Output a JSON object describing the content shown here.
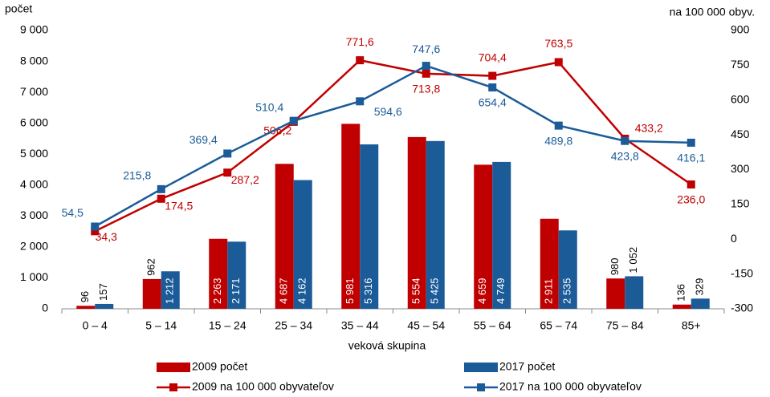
{
  "chart_data": {
    "type": "bar",
    "y_label": "počet",
    "y2_label": "na 100 000 obyv.",
    "x_label": "veková skupina",
    "categories": [
      "0 – 4",
      "5 – 14",
      "15 – 24",
      "25 – 34",
      "35 – 44",
      "45 – 54",
      "55 – 64",
      "65 – 74",
      "75 – 84",
      "85+"
    ],
    "series": [
      {
        "name": "2009 počet",
        "color": "#c00000",
        "type": "bar",
        "values": [
          96,
          962,
          2263,
          4687,
          5981,
          5554,
          4659,
          2911,
          980,
          136
        ],
        "value_labels": [
          "96",
          "962",
          "2 263",
          "4 687",
          "5 981",
          "5 554",
          "4 659",
          "2 911",
          "980",
          "136"
        ]
      },
      {
        "name": "2017 počet",
        "color": "#1a5b98",
        "type": "bar",
        "values": [
          157,
          1212,
          2171,
          4162,
          5316,
          5425,
          4749,
          2535,
          1052,
          329
        ],
        "value_labels": [
          "157",
          "1 212",
          "2 171",
          "4 162",
          "5 316",
          "5 425",
          "4 749",
          "2 535",
          "1 052",
          "329"
        ]
      },
      {
        "name": "2009 na 100 000 obyvateľov",
        "color": "#c00000",
        "type": "line",
        "axis": "y2",
        "values": [
          34.3,
          174.5,
          287.2,
          506.2,
          771.6,
          713.8,
          704.4,
          763.5,
          433.2,
          236.0
        ],
        "value_labels": [
          "34,3",
          "174,5",
          "287,2",
          "506,2",
          "771,6",
          "713,8",
          "704,4",
          "763,5",
          "433,2",
          "236,0"
        ]
      },
      {
        "name": "2017 na 100 000 obyvateľov",
        "color": "#1a5b98",
        "type": "line",
        "axis": "y2",
        "values": [
          54.5,
          215.8,
          369.4,
          510.4,
          594.6,
          747.6,
          654.4,
          489.8,
          423.8,
          416.1
        ],
        "value_labels": [
          "54,5",
          "215,8",
          "369,4",
          "510,4",
          "594,6",
          "747,6",
          "654,4",
          "489,8",
          "423,8",
          "416,1"
        ]
      }
    ],
    "ylim": [
      0,
      9000
    ],
    "yticks": [
      0,
      {
        "value": 1000,
        "label": "1 000"
      },
      {
        "value": 2000,
        "label": "2 000"
      },
      {
        "value": 3000,
        "label": "3 000"
      },
      {
        "value": 4000,
        "label": "4 000"
      },
      {
        "value": 5000,
        "label": "5 000"
      },
      {
        "value": 6000,
        "label": "6 000"
      },
      {
        "value": 7000,
        "label": "7 000"
      },
      {
        "value": 8000,
        "label": "8 000"
      },
      {
        "value": 9000,
        "label": "9 000"
      }
    ],
    "y2lim": [
      -300,
      900
    ],
    "y2ticks": [
      -300,
      -150,
      0,
      150,
      300,
      450,
      600,
      750,
      900
    ],
    "grid": false
  }
}
